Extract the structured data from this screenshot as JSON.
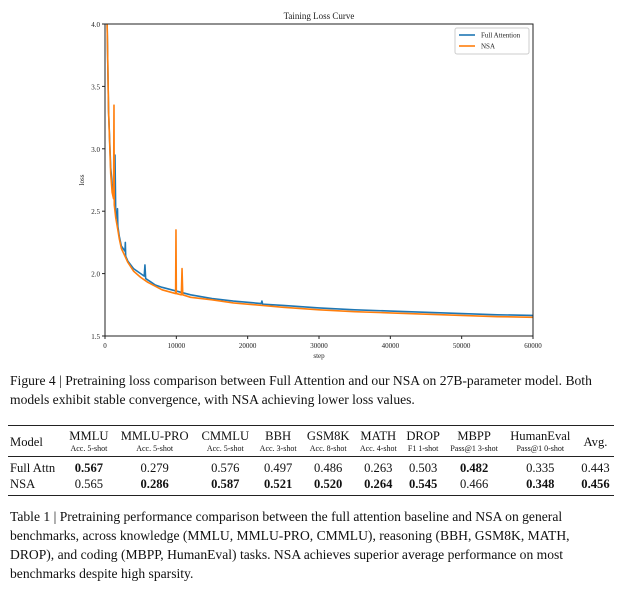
{
  "chart_data": {
    "type": "line",
    "title": "Taining Loss Curve",
    "xlabel": "step",
    "ylabel": "loss",
    "xlim": [
      0,
      60000
    ],
    "ylim": [
      1.5,
      4.0
    ],
    "xticks": [
      "0",
      "10000",
      "20000",
      "30000",
      "40000",
      "50000",
      "60000"
    ],
    "yticks": [
      "1.5",
      "2.0",
      "2.5",
      "3.0",
      "3.5",
      "4.0"
    ],
    "legend_position": "top-right",
    "series": [
      {
        "name": "Full Attention",
        "color": "#1f77b4",
        "x": [
          300,
          500,
          800,
          1000,
          1300,
          1400,
          1500,
          1700,
          1750,
          1800,
          2000,
          2300,
          2800,
          2850,
          2900,
          3200,
          4000,
          4500,
          5000,
          5500,
          5600,
          5700,
          6500,
          7000,
          8000,
          10000,
          12000,
          15000,
          18000,
          20000,
          21900,
          22000,
          22100,
          25000,
          30000,
          35000,
          40000,
          45000,
          50000,
          55000,
          60000
        ],
        "y": [
          4.0,
          3.3,
          2.85,
          2.72,
          2.6,
          2.95,
          2.5,
          2.44,
          2.52,
          2.38,
          2.3,
          2.22,
          2.18,
          2.25,
          2.14,
          2.1,
          2.04,
          2.02,
          2.0,
          1.98,
          2.07,
          1.96,
          1.93,
          1.91,
          1.89,
          1.86,
          1.83,
          1.8,
          1.78,
          1.77,
          1.76,
          1.78,
          1.755,
          1.745,
          1.725,
          1.71,
          1.7,
          1.69,
          1.68,
          1.67,
          1.665
        ]
      },
      {
        "name": "NSA",
        "color": "#ff7f0e",
        "x": [
          300,
          500,
          800,
          1000,
          1200,
          1260,
          1300,
          1500,
          1800,
          2000,
          2300,
          2800,
          3200,
          4000,
          5000,
          6000,
          7000,
          8000,
          9900,
          9950,
          10000,
          10700,
          10800,
          10900,
          12000,
          15000,
          18000,
          20000,
          25000,
          30000,
          35000,
          40000,
          45000,
          50000,
          55000,
          60000
        ],
        "y": [
          4.0,
          3.3,
          2.8,
          2.65,
          2.6,
          3.35,
          2.55,
          2.45,
          2.35,
          2.28,
          2.2,
          2.14,
          2.09,
          2.02,
          1.97,
          1.93,
          1.9,
          1.87,
          1.84,
          2.35,
          1.84,
          1.83,
          2.04,
          1.83,
          1.81,
          1.79,
          1.765,
          1.755,
          1.73,
          1.71,
          1.695,
          1.685,
          1.675,
          1.665,
          1.655,
          1.65
        ]
      }
    ]
  },
  "figure_caption": "Figure 4 | Pretraining loss comparison between Full Attention and our NSA on 27B-parameter model. Both models exhibit stable convergence, with NSA achieving lower loss values.",
  "table": {
    "model_header": "Model",
    "avg_header": "Avg.",
    "columns": [
      {
        "name": "MMLU",
        "sub": "Acc. 5-shot"
      },
      {
        "name": "MMLU-PRO",
        "sub": "Acc. 5-shot"
      },
      {
        "name": "CMMLU",
        "sub": "Acc. 5-shot"
      },
      {
        "name": "BBH",
        "sub": "Acc. 3-shot"
      },
      {
        "name": "GSM8K",
        "sub": "Acc. 8-shot"
      },
      {
        "name": "MATH",
        "sub": "Acc. 4-shot"
      },
      {
        "name": "DROP",
        "sub": "F1 1-shot"
      },
      {
        "name": "MBPP",
        "sub": "Pass@1 3-shot"
      },
      {
        "name": "HumanEval",
        "sub": "Pass@1 0-shot"
      }
    ],
    "rows": [
      {
        "model": "Full Attn",
        "values": [
          "0.567",
          "0.279",
          "0.576",
          "0.497",
          "0.486",
          "0.263",
          "0.503",
          "0.482",
          "0.335",
          "0.443"
        ],
        "bold": [
          true,
          false,
          false,
          false,
          false,
          false,
          false,
          true,
          false,
          false
        ]
      },
      {
        "model": "NSA",
        "values": [
          "0.565",
          "0.286",
          "0.587",
          "0.521",
          "0.520",
          "0.264",
          "0.545",
          "0.466",
          "0.348",
          "0.456"
        ],
        "bold": [
          false,
          true,
          true,
          true,
          true,
          true,
          true,
          false,
          true,
          true
        ]
      }
    ]
  },
  "table_caption": "Table 1 | Pretraining performance comparison between the full attention baseline and NSA on general benchmarks, across knowledge (MMLU, MMLU-PRO, CMMLU), reasoning (BBH, GSM8K, MATH, DROP), and coding (MBPP, HumanEval) tasks. NSA achieves superior average performance on most benchmarks despite high sparsity."
}
